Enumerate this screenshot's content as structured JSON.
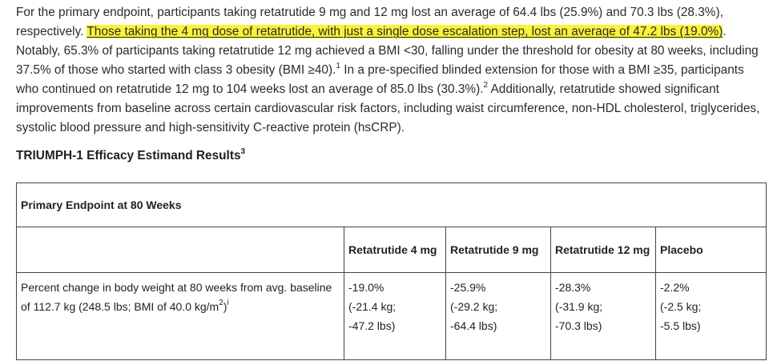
{
  "paragraph": {
    "part1": "For the primary endpoint, participants taking retatrutide 9 mg and 12 mg lost an average of 64.4 lbs (25.9%) and 70.3 lbs (28.3%), respectively. ",
    "highlight": "Those taking the 4 mg dose of retatrutide, with just a single dose escalation step, lost an average of 47.2 lbs (19.0%)",
    "part2": ". Notably, 65.3% of participants taking retatrutide 12 mg achieved a BMI <30, falling under the threshold for obesity at 80 weeks, including 37.5% of those who started with class 3 obesity (BMI ≥40).",
    "ref1": "1",
    "part3": " In a pre-specified blinded extension for those with a BMI ≥35, participants who continued on retatrutide 12 mg to 104 weeks lost an average of 85.0 lbs (30.3%).",
    "ref2": "2",
    "part4": " Additionally, retatrutide showed significant improvements from baseline across certain cardiovascular risk factors, including waist circumference, non-HDL cholesterol, triglycerides, systolic blood pressure and high-sensitivity C-reactive protein (hsCRP)."
  },
  "section_heading": {
    "text": "TRIUMPH-1 Efficacy Estimand Results",
    "ref": "3"
  },
  "table": {
    "endpoint_title": "Primary Endpoint at 80 Weeks",
    "columns": [
      "Retatrutide 4 mg",
      "Retatrutide 9 mg",
      "Retatrutide 12 mg",
      "Placebo"
    ],
    "row": {
      "label_main": "Percent change in body weight at 80 weeks from avg. baseline of 112.7 kg (248.5 lbs; BMI of 40.0 kg/m",
      "label_sup2": "2",
      "label_close": ")",
      "label_sup_i": "i",
      "values": [
        {
          "pct": "-19.0%",
          "kg": "(-21.4 kg;",
          "lbs": "-47.2 lbs)"
        },
        {
          "pct": "-25.9%",
          "kg": "(-29.2 kg;",
          "lbs": "-64.4 lbs)"
        },
        {
          "pct": "-28.3%",
          "kg": "(-31.9 kg;",
          "lbs": "-70.3 lbs)"
        },
        {
          "pct": "-2.2%",
          "kg": "(-2.5 kg;",
          "lbs": "-5.5 lbs)"
        }
      ]
    }
  },
  "colors": {
    "highlight": "#fbf23a",
    "text": "#2b2b2b",
    "border": "#444444"
  }
}
